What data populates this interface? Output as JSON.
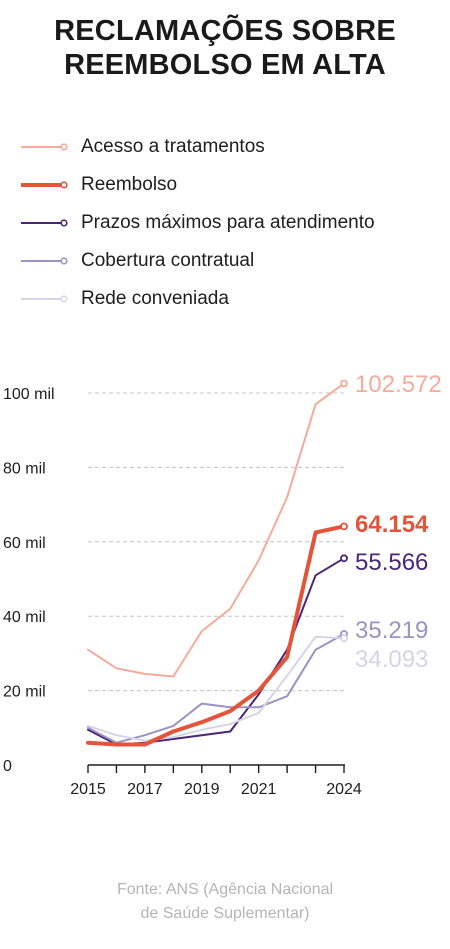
{
  "title_lines": [
    "RECLAMAÇÕES SOBRE",
    "REEMBOLSO EM ALTA"
  ],
  "source_lines": [
    "Fonte: ANS (Agência Nacional",
    "de Saúde Suplementar)"
  ],
  "chart_data": {
    "type": "line",
    "title": "RECLAMAÇÕES SOBRE REEMBOLSO EM ALTA",
    "x": [
      2015,
      2016,
      2017,
      2018,
      2019,
      2020,
      2021,
      2022,
      2023,
      2024
    ],
    "x_tick_labels": [
      "2015",
      "2017",
      "2019",
      "2021",
      "2024"
    ],
    "x_tick_values": [
      2015,
      2017,
      2019,
      2021,
      2024
    ],
    "y_tick_labels": [
      "0",
      "20 mil",
      "40 mil",
      "60 mil",
      "80 mil",
      "100 mil"
    ],
    "y_tick_values": [
      0,
      20000,
      40000,
      60000,
      80000,
      100000
    ],
    "ylim": [
      0,
      100000
    ],
    "grid": "horizontal dashed",
    "legend_position": "top",
    "series": [
      {
        "name": "Acesso a tratamentos",
        "color": "#f4ab9c",
        "stroke_width": 2,
        "values": [
          31000,
          26000,
          24500,
          23800,
          36000,
          42000,
          55000,
          72000,
          97000,
          102572
        ],
        "end_label": "102.572",
        "end_label_bold": false
      },
      {
        "name": "Reembolso",
        "color": "#e5533b",
        "stroke_width": 4,
        "values": [
          6000,
          5500,
          5500,
          9000,
          11500,
          14500,
          20000,
          29000,
          62500,
          64154
        ],
        "end_label": "64.154",
        "end_label_bold": true
      },
      {
        "name": "Prazos máximos para atendimento",
        "color": "#4a2578",
        "stroke_width": 2,
        "values": [
          9500,
          5500,
          6000,
          7000,
          8000,
          9000,
          19000,
          31000,
          51000,
          55566
        ],
        "end_label": "55.566",
        "end_label_bold": false
      },
      {
        "name": "Cobertura contratual",
        "color": "#9a93c4",
        "stroke_width": 2,
        "values": [
          10000,
          6000,
          8000,
          10500,
          16500,
          15500,
          15500,
          18500,
          31000,
          35219
        ],
        "end_label": "35.219",
        "end_label_bold": false
      },
      {
        "name": "Rede conveniada",
        "color": "#d7d3e6",
        "stroke_width": 2,
        "values": [
          10500,
          8000,
          6500,
          7500,
          9500,
          11000,
          14000,
          24000,
          34500,
          34093
        ],
        "end_label": "34.093",
        "end_label_bold": false
      }
    ]
  }
}
